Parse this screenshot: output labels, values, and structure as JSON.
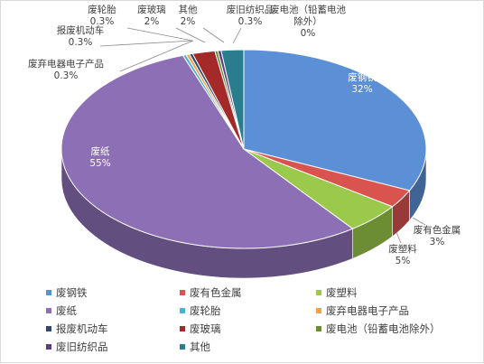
{
  "chart_data": {
    "type": "pie",
    "style": "3d-pie",
    "title": "",
    "legend_position": "bottom",
    "unit": "%",
    "slices": [
      {
        "name": "废钢铁",
        "value": 32,
        "label": "32%",
        "color": "#5b8fd6"
      },
      {
        "name": "废有色金属",
        "value": 3,
        "label": "3%",
        "color": "#d9534f"
      },
      {
        "name": "废塑料",
        "value": 5,
        "label": "5%",
        "color": "#9bc94b"
      },
      {
        "name": "废纸",
        "value": 55,
        "label": "55%",
        "color": "#8c6fb5"
      },
      {
        "name": "废轮胎",
        "value": 0.3,
        "label": "0.3%",
        "color": "#4bb3d1"
      },
      {
        "name": "废弃电器电子产品",
        "value": 0.3,
        "label": "0.3%",
        "color": "#f2a04a"
      },
      {
        "name": "报废机动车",
        "value": 0.3,
        "label": "0.3%",
        "color": "#2e4a73"
      },
      {
        "name": "废玻璃",
        "value": 2,
        "label": "2%",
        "color": "#a42a2a"
      },
      {
        "name": "废电池（铅蓄电池除外）",
        "value": 0,
        "label": "0%",
        "color": "#6b8f2e"
      },
      {
        "name": "废旧纺织品",
        "value": 0.3,
        "label": "0.3%",
        "color": "#5a3f84"
      },
      {
        "name": "其他",
        "value": 2,
        "label": "2%",
        "color": "#2a7d8c"
      }
    ]
  }
}
